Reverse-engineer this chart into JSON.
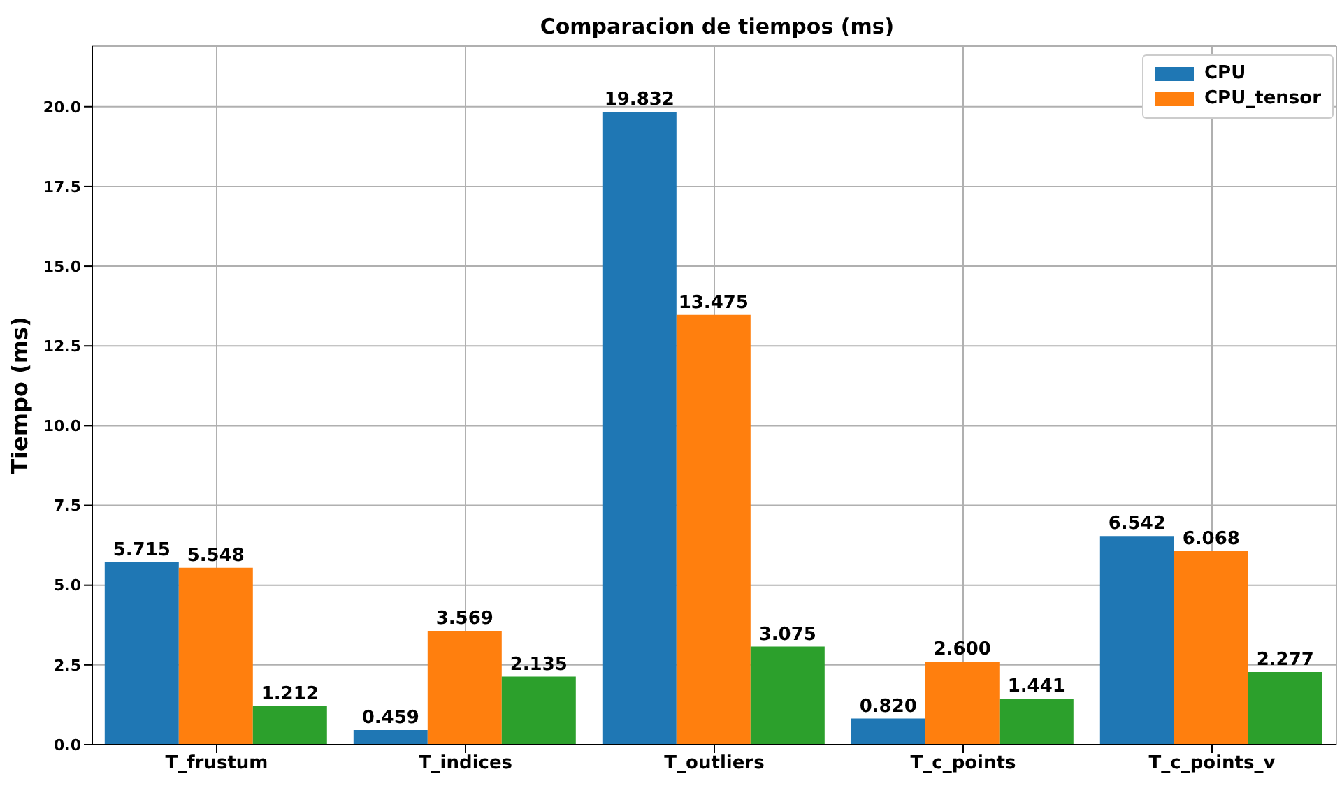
{
  "chart_data": {
    "type": "bar",
    "title": "Comparacion de tiempos (ms)",
    "ylabel": "Tiempo (ms)",
    "categories": [
      "T_frustum",
      "T_indices",
      "T_outliers",
      "T_c_points",
      "T_c_points_v"
    ],
    "series": [
      {
        "name": "CPU",
        "color": "#1f77b4",
        "values": [
          5.715,
          0.459,
          19.832,
          0.82,
          6.542
        ],
        "value_labels": [
          "5.715",
          "0.459",
          "19.832",
          "0.820",
          "6.542"
        ]
      },
      {
        "name": "CPU_tensor",
        "color": "#ff7f0e",
        "values": [
          5.548,
          3.569,
          13.475,
          2.6,
          6.068
        ],
        "value_labels": [
          "5.548",
          "3.569",
          "13.475",
          "2.600",
          "6.068"
        ]
      },
      {
        "color": "#2ca02c",
        "values": [
          1.212,
          2.135,
          3.075,
          1.441,
          2.277
        ],
        "value_labels": [
          "1.212",
          "2.135",
          "3.075",
          "1.441",
          "2.277"
        ]
      }
    ],
    "ylim": [
      0,
      21.9
    ],
    "yticks": [
      {
        "value": 0,
        "label": "0.0"
      },
      {
        "value": 2.5,
        "label": "2.5"
      },
      {
        "value": 5,
        "label": "5.0"
      },
      {
        "value": 7.5,
        "label": "7.5"
      },
      {
        "value": 10,
        "label": "10.0"
      },
      {
        "value": 12.5,
        "label": "12.5"
      },
      {
        "value": 15,
        "label": "15.0"
      },
      {
        "value": 17.5,
        "label": "17.5"
      },
      {
        "value": 20,
        "label": "20.0"
      }
    ],
    "grid": true,
    "legend": "top right"
  }
}
